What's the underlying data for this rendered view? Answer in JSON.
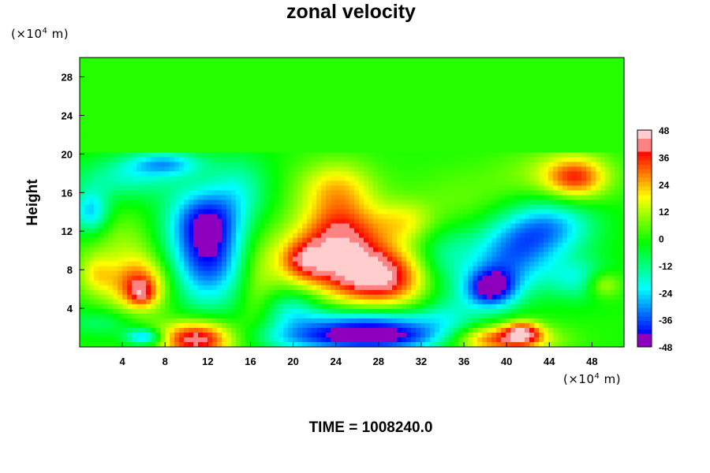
{
  "chart_data": {
    "type": "heatmap",
    "title": "zonal velocity",
    "ylabel": "Height",
    "xlabel": "",
    "x_unit": {
      "prefix": "(×10",
      "exp": "4",
      "suffix": " m)"
    },
    "y_unit": {
      "prefix": "(×10",
      "exp": "4",
      "suffix": " m)"
    },
    "xlim": [
      0,
      51
    ],
    "ylim": [
      0,
      30
    ],
    "x_ticks": [
      "4",
      "8",
      "12",
      "16",
      "20",
      "24",
      "28",
      "32",
      "36",
      "40",
      "44",
      "48"
    ],
    "y_ticks": [
      "4",
      "8",
      "12",
      "16",
      "20",
      "24",
      "28"
    ],
    "colorbar": {
      "min": -48,
      "max": 48,
      "ticks": [
        "48",
        "36",
        "24",
        "12",
        "0",
        "-12",
        "-24",
        "-36",
        "-48"
      ]
    },
    "background_value": 0,
    "features": [
      {
        "x": 12.0,
        "y": 9.5,
        "sx": 2.6,
        "sy": 3.6,
        "value": -40
      },
      {
        "x": 11.5,
        "y": 13.5,
        "sx": 2.4,
        "sy": 2.2,
        "value": -22
      },
      {
        "x": 11.0,
        "y": 0.8,
        "sx": 2.5,
        "sy": 1.3,
        "value": 46
      },
      {
        "x": 5.5,
        "y": 6.5,
        "sx": 2.0,
        "sy": 2.0,
        "value": 34
      },
      {
        "x": 5.8,
        "y": 5.5,
        "sx": 0.9,
        "sy": 0.9,
        "value": 16
      },
      {
        "x": 1.5,
        "y": 7.5,
        "sx": 1.2,
        "sy": 1.5,
        "value": 16
      },
      {
        "x": 1.0,
        "y": 14.0,
        "sx": 1.2,
        "sy": 1.6,
        "value": -26
      },
      {
        "x": 4.5,
        "y": 17.5,
        "sx": 3.5,
        "sy": 1.5,
        "value": -16
      },
      {
        "x": 8.0,
        "y": 19.0,
        "sx": 2.5,
        "sy": 0.9,
        "value": -24
      },
      {
        "x": 24.0,
        "y": 9.0,
        "sx": 4.0,
        "sy": 2.6,
        "value": 36
      },
      {
        "x": 28.5,
        "y": 7.0,
        "sx": 3.0,
        "sy": 2.0,
        "value": 34
      },
      {
        "x": 21.0,
        "y": 9.0,
        "sx": 1.5,
        "sy": 1.3,
        "value": 16
      },
      {
        "x": 24.5,
        "y": 12.5,
        "sx": 2.6,
        "sy": 2.2,
        "value": 22
      },
      {
        "x": 24.0,
        "y": 16.5,
        "sx": 2.5,
        "sy": 2.0,
        "value": 20
      },
      {
        "x": 27.0,
        "y": 1.0,
        "sx": 6.5,
        "sy": 1.1,
        "value": -48
      },
      {
        "x": 27.0,
        "y": 2.8,
        "sx": 4.5,
        "sy": 0.9,
        "value": -22
      },
      {
        "x": 20.0,
        "y": 4.0,
        "sx": 2.0,
        "sy": 1.5,
        "value": -18
      },
      {
        "x": 16.5,
        "y": 6.5,
        "sx": 1.3,
        "sy": 4.0,
        "value": 10
      },
      {
        "x": 15.0,
        "y": 16.5,
        "sx": 2.0,
        "sy": 2.5,
        "value": -14
      },
      {
        "x": 38.5,
        "y": 6.0,
        "sx": 1.8,
        "sy": 1.5,
        "value": -42
      },
      {
        "x": 40.5,
        "y": 9.5,
        "sx": 3.0,
        "sy": 2.5,
        "value": -30
      },
      {
        "x": 44.0,
        "y": 12.5,
        "sx": 3.0,
        "sy": 2.0,
        "value": -26
      },
      {
        "x": 47.0,
        "y": 7.0,
        "sx": 2.2,
        "sy": 1.5,
        "value": -18
      },
      {
        "x": 34.0,
        "y": 9.0,
        "sx": 2.0,
        "sy": 2.5,
        "value": -14
      },
      {
        "x": 39.0,
        "y": 0.8,
        "sx": 3.5,
        "sy": 1.0,
        "value": 40
      },
      {
        "x": 41.5,
        "y": 1.5,
        "sx": 1.2,
        "sy": 0.8,
        "value": 32
      },
      {
        "x": 49.0,
        "y": 6.5,
        "sx": 1.2,
        "sy": 1.0,
        "value": 20
      },
      {
        "x": 46.5,
        "y": 17.5,
        "sx": 2.0,
        "sy": 1.5,
        "value": 28
      },
      {
        "x": 44.5,
        "y": 18.0,
        "sx": 3.5,
        "sy": 1.8,
        "value": 10
      },
      {
        "x": 4.0,
        "y": 11.0,
        "sx": 2.5,
        "sy": 2.0,
        "value": 8
      },
      {
        "x": 36.0,
        "y": 15.0,
        "sx": 4.0,
        "sy": 2.5,
        "value": 6
      },
      {
        "x": 2.0,
        "y": 2.5,
        "sx": 2.5,
        "sy": 1.0,
        "value": -10
      },
      {
        "x": 6.0,
        "y": 1.0,
        "sx": 1.2,
        "sy": 0.6,
        "value": -30
      },
      {
        "x": 34.5,
        "y": 3.5,
        "sx": 2.0,
        "sy": 1.5,
        "value": -12
      },
      {
        "x": 30.5,
        "y": 13.0,
        "sx": 2.0,
        "sy": 1.5,
        "value": 14
      }
    ]
  },
  "footer": {
    "time_label": "TIME = 1008240.0"
  }
}
